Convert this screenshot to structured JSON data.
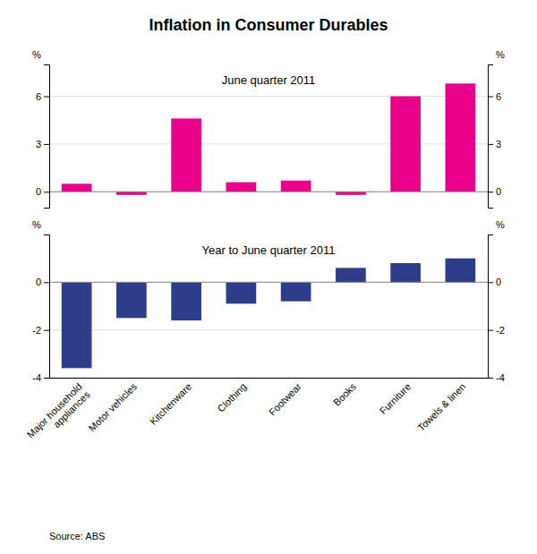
{
  "chart_data": [
    {
      "type": "bar",
      "title": "Inflation in Consumer Durables",
      "annotations": [
        "June quarter 2011"
      ],
      "categories": [
        "Major household\nappliances",
        "Motor vehicles",
        "Kitchenware",
        "Clothing",
        "Footwear",
        "Books",
        "Furniture",
        "Towels & linen"
      ],
      "values": [
        0.5,
        -0.2,
        4.6,
        0.6,
        0.7,
        -0.2,
        6.0,
        6.8
      ],
      "color": "#E8008A",
      "ylim": [
        -1,
        8
      ],
      "yticks": [
        0,
        3,
        6
      ],
      "y2lim": [
        -1,
        8
      ],
      "y2ticks": [
        0,
        3,
        6
      ],
      "ylabel": "%",
      "y2label": "%",
      "grid": true,
      "tick_labels": "y"
    },
    {
      "type": "bar",
      "annotations": [
        "Year to June quarter 2011"
      ],
      "categories": [
        "Major household\nappliances",
        "Motor vehicles",
        "Kitchenware",
        "Clothing",
        "Footwear",
        "Books",
        "Furniture",
        "Towels & linen"
      ],
      "values": [
        -3.6,
        -1.5,
        -1.6,
        -0.9,
        -0.8,
        0.6,
        0.8,
        1.0
      ],
      "color": "#2E3D8A",
      "ylim": [
        -4,
        2
      ],
      "yticks": [
        -4,
        -2,
        0
      ],
      "y2lim": [
        -4,
        2
      ],
      "y2ticks": [
        -4,
        -2,
        0
      ],
      "ylabel": "%",
      "y2label": "%",
      "grid": true,
      "source": "Source: ABS"
    }
  ]
}
